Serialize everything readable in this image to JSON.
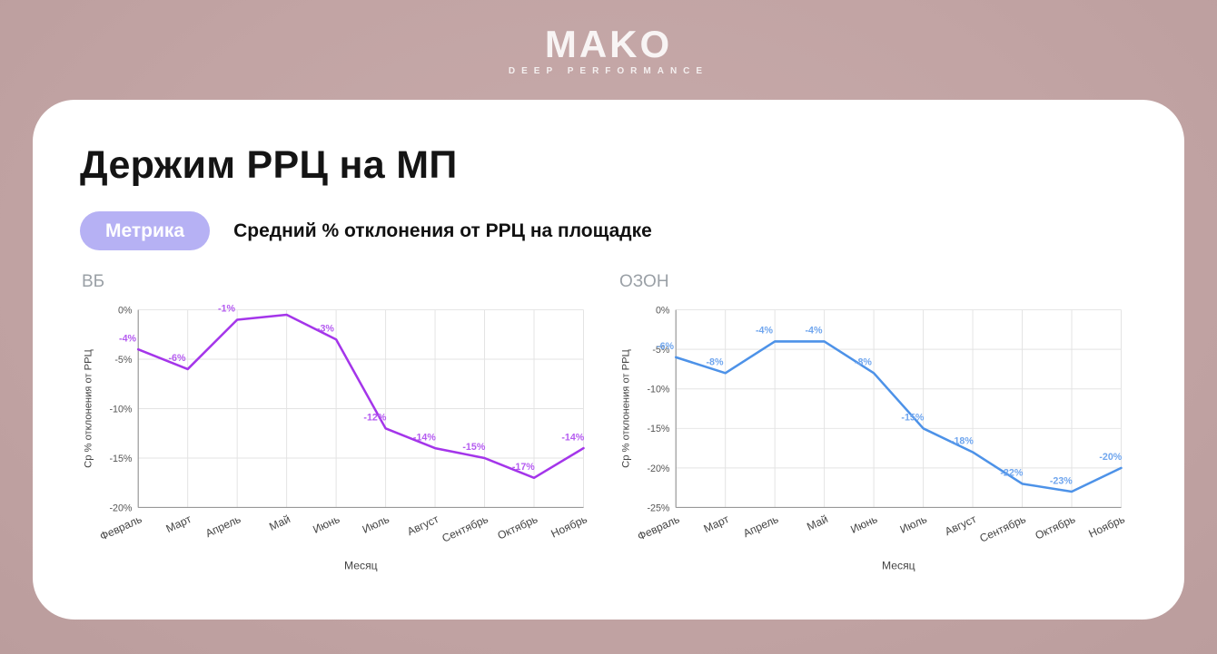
{
  "logo": {
    "brand": "MAKO",
    "tagline": "DEEP PERFORMANCE"
  },
  "card": {
    "title": "Держим РРЦ на МП",
    "badge_label": "Метрика",
    "badge_color": "#b6b1f4",
    "subtitle": "Средний % отклонения от РРЦ на площадке"
  },
  "chart_data": [
    {
      "type": "line",
      "title": "ВБ",
      "xlabel": "Месяц",
      "ylabel": "Ср % отклонения от РРЦ",
      "categories": [
        "Февраль",
        "Март",
        "Апрель",
        "Май",
        "Июнь",
        "Июль",
        "Август",
        "Сентябрь",
        "Октябрь",
        "Ноябрь"
      ],
      "values": [
        -4,
        -6,
        -1,
        -0.5,
        -3,
        -12,
        -14,
        -15,
        -17,
        -14
      ],
      "point_labels": [
        "-4%",
        "-6%",
        "-1%",
        "",
        "-3%",
        "-12%",
        "-14%",
        "-15%",
        "-17%",
        "-14%"
      ],
      "ylim": [
        -20,
        0
      ],
      "yticks": [
        0,
        -5,
        -10,
        -15,
        -20
      ],
      "grid": true,
      "legend": "none",
      "line_color": "#a435ea",
      "label_color": "#b55cf0"
    },
    {
      "type": "line",
      "title": "ОЗОН",
      "xlabel": "Месяц",
      "ylabel": "Ср % отклонения от РРЦ",
      "categories": [
        "Февраль",
        "Март",
        "Апрель",
        "Май",
        "Июнь",
        "Июль",
        "Август",
        "Сентябрь",
        "Октябрь",
        "Ноябрь"
      ],
      "values": [
        -6,
        -8,
        -4,
        -4,
        -8,
        -15,
        -18,
        -22,
        -23,
        -20
      ],
      "point_labels": [
        "-6%",
        "-8%",
        "-4%",
        "-4%",
        "-8%",
        "-15%",
        "-18%",
        "-22%",
        "-23%",
        "-20%"
      ],
      "ylim": [
        -25,
        0
      ],
      "yticks": [
        0,
        -5,
        -10,
        -15,
        -20,
        -25
      ],
      "grid": true,
      "legend": "none",
      "line_color": "#4d92e8",
      "label_color": "#70a6ee"
    }
  ]
}
